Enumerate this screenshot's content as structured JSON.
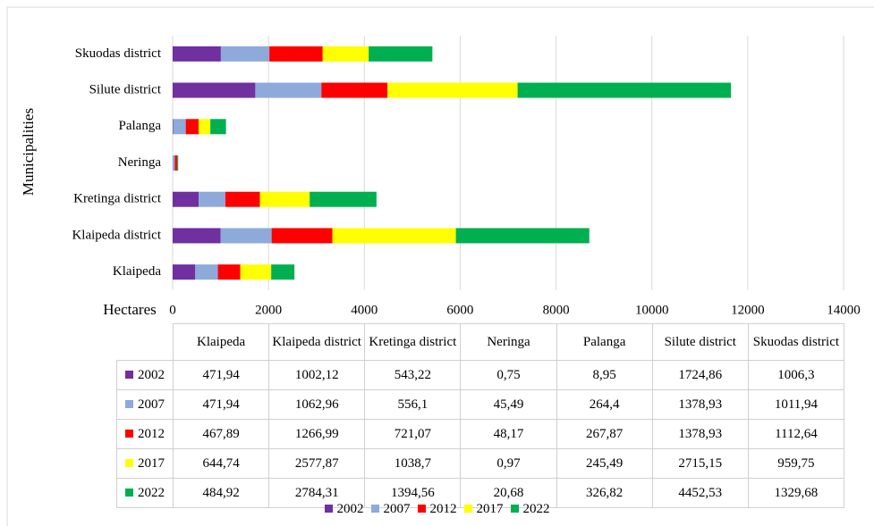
{
  "chart_data": {
    "type": "stacked_barh",
    "categories": [
      "Klaipeda",
      "Klaipeda district",
      "Kretinga district",
      "Neringa",
      "Palanga",
      "Silute district",
      "Skuodas district"
    ],
    "series": [
      {
        "name": "2002",
        "color": "#7030a0",
        "values": [
          471.94,
          1002.12,
          543.22,
          0.75,
          8.95,
          1724.86,
          1006.3
        ],
        "value_labels": [
          "471,94",
          "1002,12",
          "543,22",
          "0,75",
          "8,95",
          "1724,86",
          "1006,3"
        ]
      },
      {
        "name": "2007",
        "color": "#8eaadb",
        "values": [
          471.94,
          1062.96,
          556.1,
          45.49,
          264.4,
          1378.93,
          1011.94
        ],
        "value_labels": [
          "471,94",
          "1062,96",
          "556,1",
          "45,49",
          "264,4",
          "1378,93",
          "1011,94"
        ]
      },
      {
        "name": "2012",
        "color": "#ff0000",
        "values": [
          467.89,
          1266.99,
          721.07,
          48.17,
          267.87,
          1378.93,
          1112.64
        ],
        "value_labels": [
          "467,89",
          "1266,99",
          "721,07",
          "48,17",
          "267,87",
          "1378,93",
          "1112,64"
        ]
      },
      {
        "name": "2017",
        "color": "#ffff00",
        "values": [
          644.74,
          2577.87,
          1038.7,
          0.97,
          245.49,
          2715.15,
          959.75
        ],
        "value_labels": [
          "644,74",
          "2577,87",
          "1038,7",
          "0,97",
          "245,49",
          "2715,15",
          "959,75"
        ]
      },
      {
        "name": "2022",
        "color": "#00b050",
        "values": [
          484.92,
          2784.31,
          1394.56,
          20.68,
          326.82,
          4452.53,
          1329.68
        ],
        "value_labels": [
          "484,92",
          "2784,31",
          "1394,56",
          "20,68",
          "326,82",
          "4452,53",
          "1329,68"
        ]
      }
    ],
    "x_label": "Hectares",
    "y_label": "Municipalities",
    "xlim": [
      0,
      14000
    ],
    "xticks": [
      0,
      2000,
      4000,
      6000,
      8000,
      10000,
      12000,
      14000
    ],
    "grid": true
  }
}
